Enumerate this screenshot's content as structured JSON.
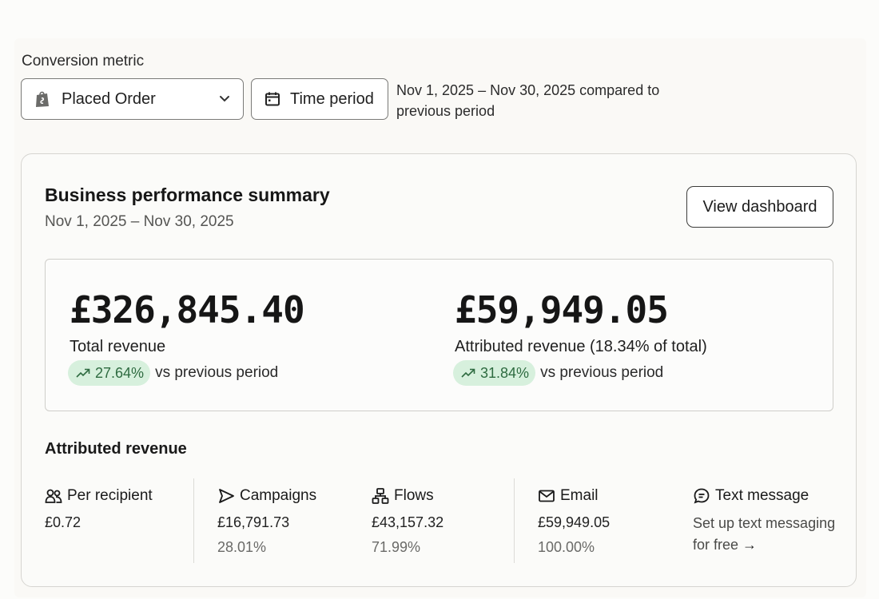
{
  "conversion_metric": {
    "label": "Conversion metric",
    "selected": "Placed Order",
    "time_period_label": "Time period",
    "period_description": "Nov 1, 2025 – Nov 30, 2025 compared to previous period"
  },
  "summary": {
    "title": "Business performance summary",
    "date_range": "Nov 1, 2025 – Nov 30, 2025",
    "view_dashboard_label": "View dashboard",
    "total": {
      "amount": "£326,845.40",
      "label": "Total revenue",
      "change": "27.64%",
      "vs_text": "vs previous period"
    },
    "attributed": {
      "amount": "£59,949.05",
      "label": "Attributed revenue (18.34% of total)",
      "change": "31.84%",
      "vs_text": "vs previous period"
    }
  },
  "attributed_revenue": {
    "title": "Attributed revenue",
    "per_recipient": {
      "label": "Per recipient",
      "value": "£0.72",
      "icon": "people-icon"
    },
    "campaigns": {
      "label": "Campaigns",
      "value": "£16,791.73",
      "percent": "28.01%",
      "icon": "send-icon"
    },
    "flows": {
      "label": "Flows",
      "value": "£43,157.32",
      "percent": "71.99%",
      "icon": "flow-icon"
    },
    "email": {
      "label": "Email",
      "value": "£59,949.05",
      "percent": "100.00%",
      "icon": "mail-icon"
    },
    "text_message": {
      "label": "Text message",
      "link": "Set up text messaging for free",
      "arrow": "→",
      "icon": "chat-icon"
    }
  },
  "colors": {
    "pill_bg": "#d7f0dd",
    "pill_text": "#2e6b40",
    "card_border": "#d6d5d1"
  }
}
